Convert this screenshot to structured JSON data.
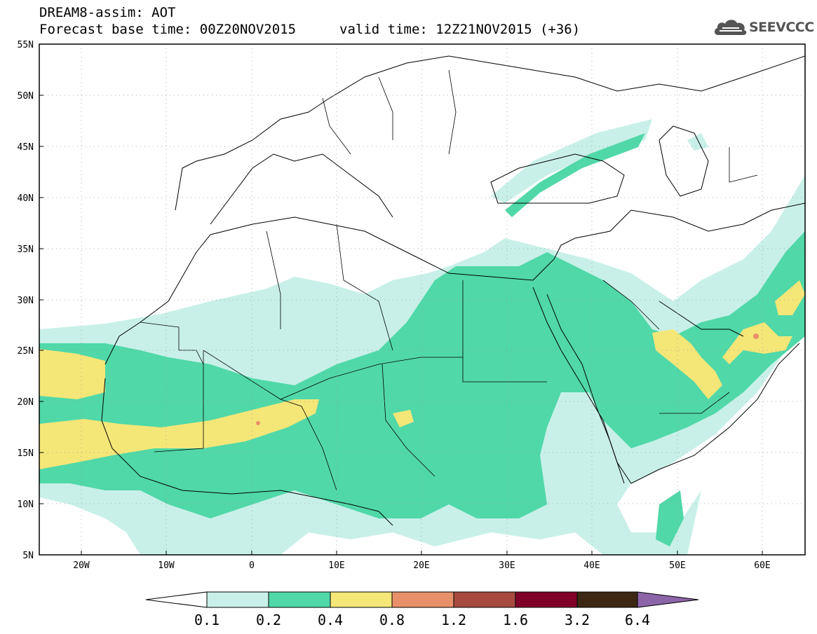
{
  "header": {
    "title": "DREAM8-assim: AOT",
    "base_time": "Forecast base time: 00Z20NOV2015",
    "valid_time": "valid time: 12Z21NOV2015 (+36)"
  },
  "logo": {
    "text": "SEEVCCC"
  },
  "axes": {
    "lat_labels": [
      "55N",
      "50N",
      "45N",
      "40N",
      "35N",
      "30N",
      "25N",
      "20N",
      "15N",
      "10N",
      "5N"
    ],
    "lon_labels": [
      "20W",
      "10W",
      "0",
      "10E",
      "20E",
      "30E",
      "40E",
      "50E",
      "60E"
    ]
  },
  "colorbar": {
    "labels": [
      "0.1",
      "0.2",
      "0.4",
      "0.8",
      "1.2",
      "1.6",
      "3.2",
      "6.4"
    ],
    "colors": [
      "#ffffff",
      "#c8f0e8",
      "#50d8a8",
      "#f5e678",
      "#e8906a",
      "#a84a40",
      "#800028",
      "#3c2814",
      "#8c64a8"
    ]
  }
}
